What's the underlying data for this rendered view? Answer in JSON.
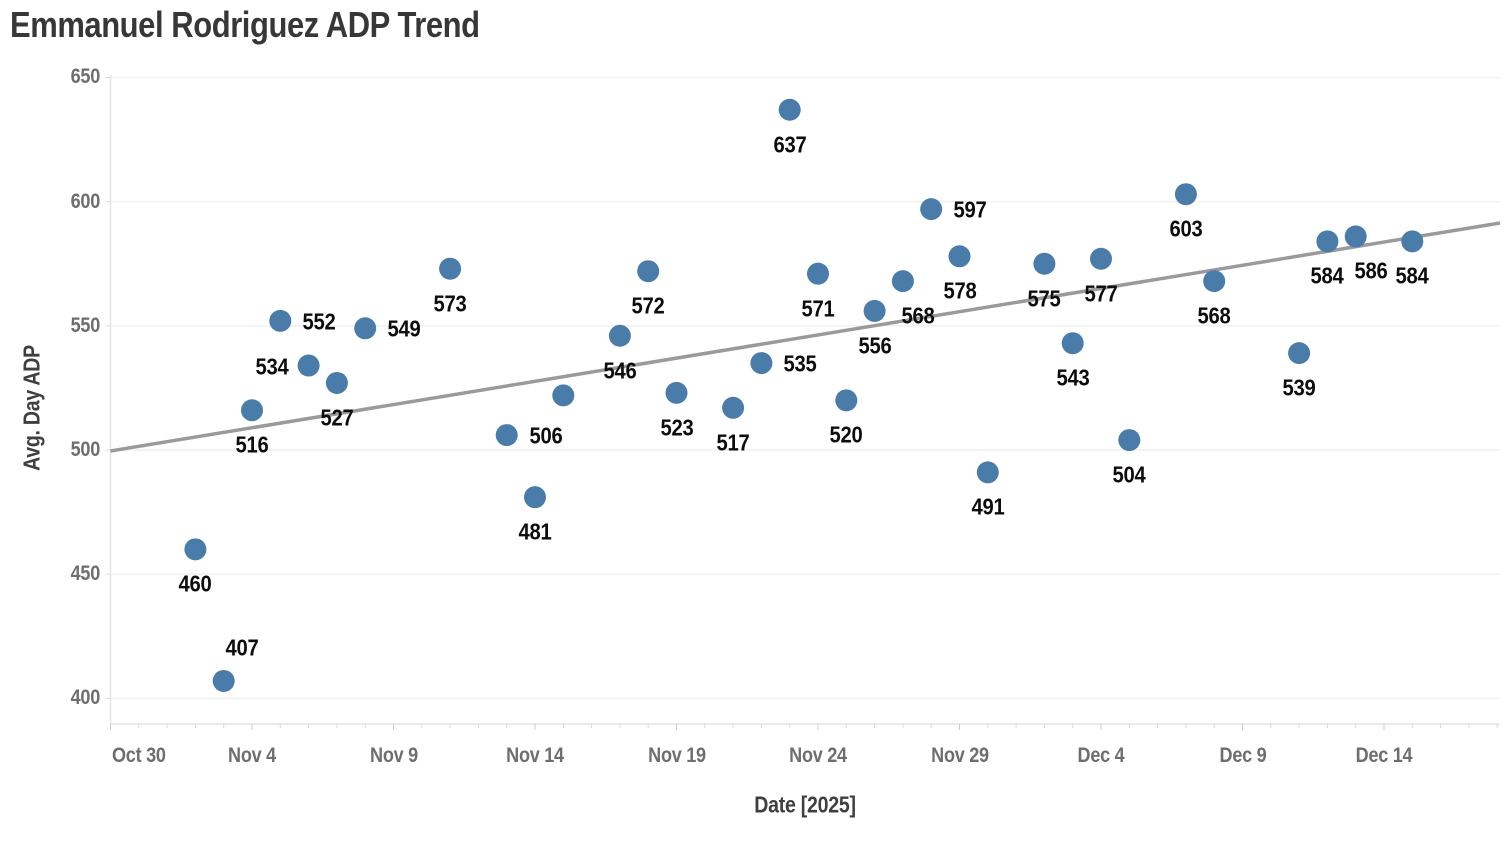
{
  "title": "Emmanuel Rodriguez ADP Trend",
  "colors": {
    "background": "#ffffff",
    "marker": "#4a7caa",
    "trend_line": "#9a9a9a",
    "gridline": "#f1f1f1",
    "axis_line": "#e3e3e3",
    "tick_mark": "#d9d9d9",
    "tick_label": "#6e6e6e",
    "data_label": "#0d0d0d",
    "title_text": "#373737",
    "axis_title_text": "#3f3f3f"
  },
  "chart_data": {
    "type": "scatter",
    "title": "Emmanuel Rodriguez ADP Trend",
    "xlabel": "Date [2025]",
    "ylabel": "Avg. Day ADP",
    "x_tick_labels": [
      "Oct 30",
      "Nov 4",
      "Nov 9",
      "Nov 14",
      "Nov 19",
      "Nov 24",
      "Nov 29",
      "Dec 4",
      "Dec 9",
      "Dec 14"
    ],
    "x_tick_days": [
      0,
      5,
      10,
      15,
      20,
      25,
      30,
      35,
      40,
      45
    ],
    "y_ticks": [
      400,
      450,
      500,
      550,
      600,
      650
    ],
    "ylim": [
      390,
      651
    ],
    "xlim_days": [
      0,
      49.1
    ],
    "grid": "horizontal",
    "legend": "none",
    "points": [
      {
        "date": "Nov 2",
        "day": 3,
        "value": 460,
        "label": "460",
        "label_pos": "below"
      },
      {
        "date": "Nov 3",
        "day": 4,
        "value": 407,
        "label": "407",
        "label_pos": "above"
      },
      {
        "date": "Nov 4",
        "day": 5,
        "value": 516,
        "label": "516",
        "label_pos": "below"
      },
      {
        "date": "Nov 5",
        "day": 6,
        "value": 552,
        "label": "552",
        "label_pos": "right"
      },
      {
        "date": "Nov 6",
        "day": 7,
        "value": 534,
        "label": "534",
        "label_pos": "left"
      },
      {
        "date": "Nov 7",
        "day": 8,
        "value": 527,
        "label": "527",
        "label_pos": "below"
      },
      {
        "date": "Nov 8",
        "day": 9,
        "value": 549,
        "label": "549",
        "label_pos": "right"
      },
      {
        "date": "Nov 11",
        "day": 12,
        "value": 573,
        "label": "573",
        "label_pos": "below"
      },
      {
        "date": "Nov 13",
        "day": 14,
        "value": 506,
        "label": "506",
        "label_pos": "right"
      },
      {
        "date": "Nov 14",
        "day": 15,
        "value": 481,
        "label": "481",
        "label_pos": "below"
      },
      {
        "date": "Nov 15",
        "day": 16,
        "value": 522,
        "label": "",
        "label_pos": "none"
      },
      {
        "date": "Nov 17",
        "day": 18,
        "value": 546,
        "label": "546",
        "label_pos": "below"
      },
      {
        "date": "Nov 18",
        "day": 19,
        "value": 572,
        "label": "572",
        "label_pos": "below"
      },
      {
        "date": "Nov 19",
        "day": 20,
        "value": 523,
        "label": "523",
        "label_pos": "below"
      },
      {
        "date": "Nov 21",
        "day": 22,
        "value": 517,
        "label": "517",
        "label_pos": "below"
      },
      {
        "date": "Nov 22",
        "day": 23,
        "value": 535,
        "label": "535",
        "label_pos": "right"
      },
      {
        "date": "Nov 23",
        "day": 24,
        "value": 637,
        "label": "637",
        "label_pos": "below"
      },
      {
        "date": "Nov 24",
        "day": 25,
        "value": 571,
        "label": "571",
        "label_pos": "below"
      },
      {
        "date": "Nov 25",
        "day": 26,
        "value": 520,
        "label": "520",
        "label_pos": "below"
      },
      {
        "date": "Nov 26",
        "day": 27,
        "value": 556,
        "label": "556",
        "label_pos": "below"
      },
      {
        "date": "Nov 27",
        "day": 28,
        "value": 568,
        "label": "568",
        "label_pos": "below-right"
      },
      {
        "date": "Nov 28",
        "day": 29,
        "value": 597,
        "label": "597",
        "label_pos": "right"
      },
      {
        "date": "Nov 29",
        "day": 30,
        "value": 578,
        "label": "578",
        "label_pos": "below"
      },
      {
        "date": "Nov 30",
        "day": 31,
        "value": 491,
        "label": "491",
        "label_pos": "below"
      },
      {
        "date": "Dec 2",
        "day": 33,
        "value": 575,
        "label": "575",
        "label_pos": "below"
      },
      {
        "date": "Dec 3",
        "day": 34,
        "value": 543,
        "label": "543",
        "label_pos": "below"
      },
      {
        "date": "Dec 4",
        "day": 35,
        "value": 577,
        "label": "577",
        "label_pos": "below"
      },
      {
        "date": "Dec 5",
        "day": 36,
        "value": 504,
        "label": "504",
        "label_pos": "below"
      },
      {
        "date": "Dec 7",
        "day": 38,
        "value": 603,
        "label": "603",
        "label_pos": "below"
      },
      {
        "date": "Dec 8",
        "day": 39,
        "value": 568,
        "label": "568",
        "label_pos": "below"
      },
      {
        "date": "Dec 11",
        "day": 42,
        "value": 539,
        "label": "539",
        "label_pos": "below"
      },
      {
        "date": "Dec 12",
        "day": 43,
        "value": 584,
        "label": "584",
        "label_pos": "below"
      },
      {
        "date": "Dec 13",
        "day": 44,
        "value": 586,
        "label": "586",
        "label_pos": "below-right"
      },
      {
        "date": "Dec 15",
        "day": 46,
        "value": 584,
        "label": "584",
        "label_pos": "below"
      }
    ],
    "trend_line": {
      "start_day": 0,
      "start_value": 499.6,
      "end_day": 49.1,
      "end_value": 591.4
    }
  }
}
